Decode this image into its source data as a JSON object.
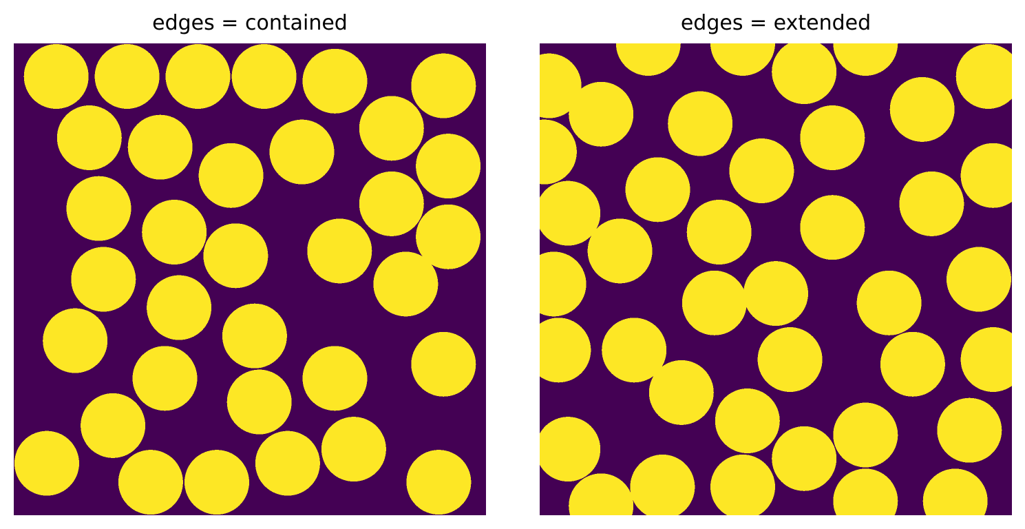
{
  "colors": {
    "background": "#440154",
    "particle": "#fde725"
  },
  "panels": [
    {
      "title": "edges = contained",
      "circles": [
        [
          0.09,
          0.07
        ],
        [
          0.24,
          0.07
        ],
        [
          0.39,
          0.07
        ],
        [
          0.53,
          0.07
        ],
        [
          0.68,
          0.08
        ],
        [
          0.91,
          0.09
        ],
        [
          0.16,
          0.2
        ],
        [
          0.31,
          0.22
        ],
        [
          0.46,
          0.28
        ],
        [
          0.61,
          0.23
        ],
        [
          0.8,
          0.18
        ],
        [
          0.92,
          0.26
        ],
        [
          0.18,
          0.35
        ],
        [
          0.34,
          0.4
        ],
        [
          0.47,
          0.45
        ],
        [
          0.69,
          0.44
        ],
        [
          0.8,
          0.34
        ],
        [
          0.92,
          0.41
        ],
        [
          0.19,
          0.5
        ],
        [
          0.35,
          0.56
        ],
        [
          0.51,
          0.62
        ],
        [
          0.83,
          0.51
        ],
        [
          0.13,
          0.63
        ],
        [
          0.32,
          0.71
        ],
        [
          0.52,
          0.76
        ],
        [
          0.68,
          0.71
        ],
        [
          0.91,
          0.68
        ],
        [
          0.21,
          0.81
        ],
        [
          0.07,
          0.89
        ],
        [
          0.29,
          0.93
        ],
        [
          0.43,
          0.93
        ],
        [
          0.58,
          0.89
        ],
        [
          0.72,
          0.86
        ],
        [
          0.9,
          0.93
        ]
      ]
    },
    {
      "title": "edges = extended",
      "circles": [
        [
          0.23,
          0.0
        ],
        [
          0.43,
          0.0
        ],
        [
          0.56,
          0.06
        ],
        [
          0.69,
          0.0
        ],
        [
          0.95,
          0.07
        ],
        [
          0.02,
          0.09
        ],
        [
          0.01,
          0.23
        ],
        [
          0.13,
          0.15
        ],
        [
          0.34,
          0.17
        ],
        [
          0.62,
          0.2
        ],
        [
          0.81,
          0.14
        ],
        [
          0.47,
          0.27
        ],
        [
          0.25,
          0.31
        ],
        [
          0.06,
          0.36
        ],
        [
          0.96,
          0.28
        ],
        [
          0.83,
          0.34
        ],
        [
          0.38,
          0.4
        ],
        [
          0.62,
          0.39
        ],
        [
          0.17,
          0.44
        ],
        [
          0.03,
          0.51
        ],
        [
          0.5,
          0.53
        ],
        [
          0.37,
          0.55
        ],
        [
          0.93,
          0.5
        ],
        [
          0.74,
          0.55
        ],
        [
          0.04,
          0.65
        ],
        [
          0.2,
          0.65
        ],
        [
          0.53,
          0.67
        ],
        [
          0.79,
          0.68
        ],
        [
          0.96,
          0.67
        ],
        [
          0.3,
          0.74
        ],
        [
          0.44,
          0.8
        ],
        [
          0.06,
          0.86
        ],
        [
          0.56,
          0.88
        ],
        [
          0.69,
          0.83
        ],
        [
          0.91,
          0.82
        ],
        [
          0.26,
          0.94
        ],
        [
          0.43,
          0.94
        ],
        [
          0.13,
          0.98
        ],
        [
          0.69,
          0.97
        ],
        [
          0.88,
          0.97
        ]
      ]
    }
  ]
}
